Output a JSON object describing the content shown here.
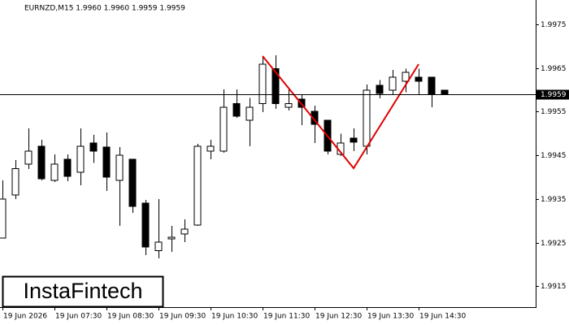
{
  "chart_data": {
    "type": "candlestick",
    "title": "EURNZD,M15  1.9960 1.9960 1.9959 1.9959",
    "watermark": "InstaFintech",
    "categories": [
      "19 Jun 2026",
      null,
      null,
      null,
      "19 Jun 07:30",
      null,
      null,
      null,
      "19 Jun 08:30",
      null,
      null,
      null,
      "19 Jun 09:30",
      null,
      null,
      null,
      "19 Jun 10:30",
      null,
      null,
      null,
      "19 Jun 11:30",
      null,
      null,
      null,
      "19 Jun 12:30",
      null,
      null,
      null,
      "19 Jun 13:30",
      null,
      null,
      null,
      "19 Jun 14:30",
      null,
      null
    ],
    "open": [
      1.9926,
      1.99359,
      1.9943,
      1.99471,
      1.99393,
      1.99441,
      1.99411,
      1.99478,
      1.99469,
      1.99393,
      1.99441,
      1.9934,
      1.99231,
      1.99258,
      1.9927,
      1.9929,
      1.9946,
      1.9946,
      1.99569,
      1.9953,
      1.99569,
      1.99649,
      1.9956,
      1.99579,
      1.99551,
      1.9953,
      1.99452,
      1.99489,
      1.99471,
      1.9961,
      1.99599,
      1.9962,
      1.99629,
      1.99629,
      1.99599
    ],
    "high": [
      1.99393,
      1.99439,
      1.99512,
      1.99486,
      1.99452,
      1.99452,
      1.99512,
      1.99497,
      1.99502,
      1.99469,
      1.99441,
      1.99348,
      1.9935,
      1.99288,
      1.99303,
      1.99476,
      1.99486,
      1.99601,
      1.99601,
      1.99582,
      1.99677,
      1.99679,
      1.99601,
      1.9959,
      1.99564,
      1.9953,
      1.995,
      1.99512,
      1.99612,
      1.99623,
      1.99646,
      1.99649,
      1.99649,
      1.99629,
      1.99599
    ],
    "low": [
      1.9926,
      1.9935,
      1.99419,
      1.99393,
      1.99389,
      1.99391,
      1.99381,
      1.99433,
      1.99368,
      1.99288,
      1.99318,
      1.99221,
      1.99214,
      1.99229,
      1.99251,
      1.99288,
      1.99441,
      1.99456,
      1.99536,
      1.99471,
      1.99549,
      1.99556,
      1.99553,
      1.99519,
      1.99478,
      1.99452,
      1.99448,
      1.9946,
      1.99452,
      1.99581,
      1.9959,
      1.99595,
      1.9959,
      1.9956,
      1.9959
    ],
    "close": [
      1.9935,
      1.9942,
      1.9946,
      1.99396,
      1.9943,
      1.99402,
      1.99471,
      1.9946,
      1.994,
      1.9945,
      1.99333,
      1.9924,
      1.99251,
      1.99262,
      1.99281,
      1.99471,
      1.99471,
      1.9956,
      1.9954,
      1.9956,
      1.99659,
      1.99569,
      1.99569,
      1.9956,
      1.99521,
      1.9946,
      1.99478,
      1.9948,
      1.99599,
      1.99592,
      1.99629,
      1.9964,
      1.9962,
      1.9959,
      1.9959
    ],
    "up_color": "#ffffff",
    "down_color": "#000000",
    "current_price": 1.9959,
    "ylim": [
      1.99102,
      1.99806
    ],
    "yticks": [
      1.9975,
      1.9965,
      1.9955,
      1.9945,
      1.9935,
      1.9925,
      1.9915
    ]
  }
}
